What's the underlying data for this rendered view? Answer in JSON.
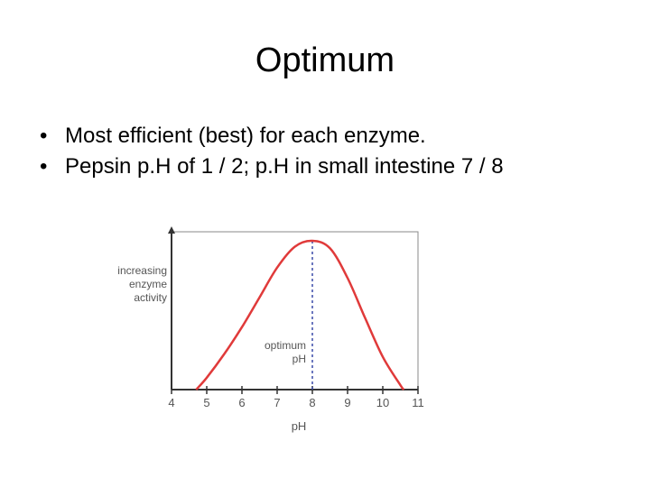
{
  "slide": {
    "title": "Optimum",
    "bullet_glyph": "•",
    "bullets": [
      "Most efficient (best) for each enzyme.",
      "Pepsin p.H of 1 / 2; p.H in small intestine 7 / 8"
    ]
  },
  "chart_data": {
    "type": "line",
    "title": "",
    "xlabel": "pH",
    "ylabel": [
      "increasing",
      "enzyme",
      "activity"
    ],
    "xlim": [
      4,
      11
    ],
    "ylim": [
      0,
      1
    ],
    "xticks": [
      4,
      5,
      6,
      7,
      8,
      9,
      10,
      11
    ],
    "grid": false,
    "series": [
      {
        "x": [
          4.7,
          5.0,
          5.5,
          6.0,
          6.5,
          7.0,
          7.5,
          8.0,
          8.5,
          9.0,
          9.5,
          10.0,
          10.5,
          10.6
        ],
        "y": [
          0.0,
          0.08,
          0.24,
          0.42,
          0.62,
          0.82,
          0.96,
          1.0,
          0.95,
          0.75,
          0.48,
          0.22,
          0.03,
          0.0
        ],
        "color": "#e03a3a"
      }
    ],
    "annotation": {
      "text": [
        "optimum",
        "pH"
      ],
      "x": 8,
      "line_color": "#3a4aa8"
    }
  }
}
